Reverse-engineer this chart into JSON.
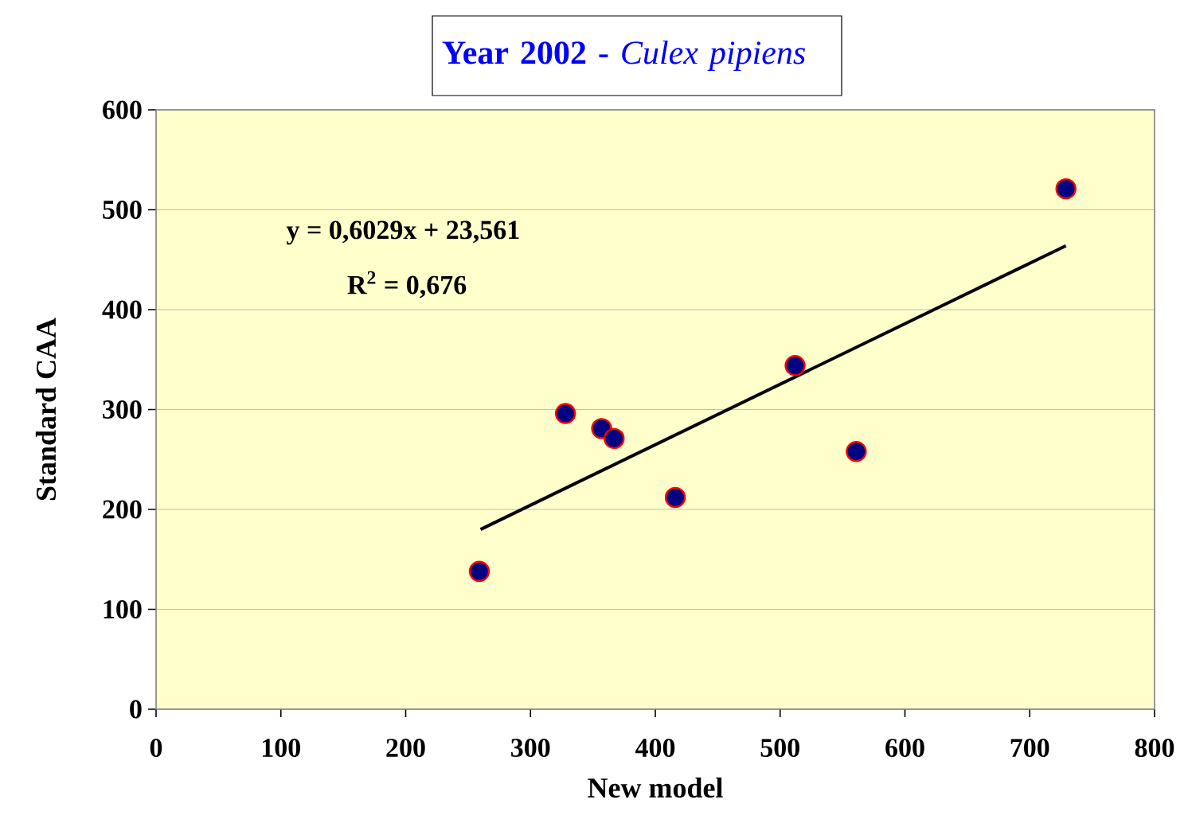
{
  "chart_data": {
    "type": "scatter",
    "title": "**Year 2002 -** *Culex pipiens*",
    "xlabel": "New model",
    "ylabel": "Standard CAA",
    "xlim": [
      0,
      800
    ],
    "xticks": [
      0,
      100,
      200,
      300,
      400,
      500,
      600,
      700,
      800
    ],
    "ylim": [
      0,
      600
    ],
    "yticks": [
      0,
      100,
      200,
      300,
      400,
      500,
      600
    ],
    "grid": "y",
    "marker": "circle",
    "series": [
      {
        "color": "#000080",
        "x": [
          259,
          328,
          357,
          367,
          416,
          512,
          561,
          729
        ],
        "values": [
          138,
          296,
          281,
          271,
          212,
          344,
          258,
          521
        ]
      },
      {
        "type": "line",
        "color": "#000000",
        "marker": "none",
        "line_style": "solid",
        "x": [
          260,
          729
        ],
        "values": [
          180,
          464
        ]
      }
    ],
    "annotations": [
      "y = 0,6029x + 23,561",
      "R$^{2}$ = 0,676"
    ]
  }
}
